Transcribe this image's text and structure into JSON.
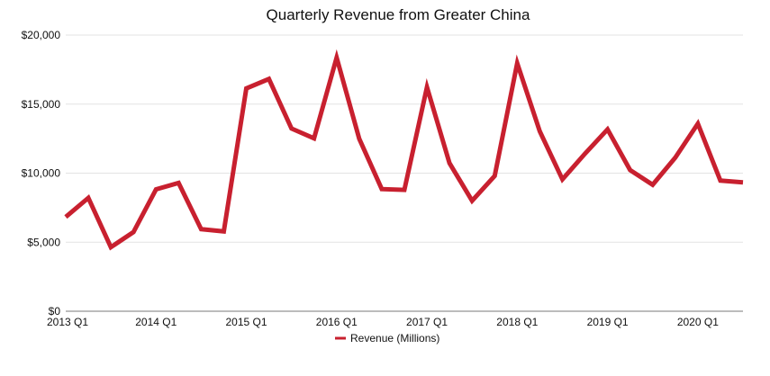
{
  "chart_data": {
    "type": "line",
    "title": "Quarterly Revenue from Greater China",
    "xlabel": "",
    "ylabel": "",
    "x_tick_labels": [
      "2013 Q1",
      "2014 Q1",
      "2015 Q1",
      "2016 Q1",
      "2017 Q1",
      "2018 Q1",
      "2019 Q1",
      "2020 Q1"
    ],
    "y_tick_labels": [
      "$0",
      "$5,000",
      "$10,000",
      "$15,000",
      "$20,000"
    ],
    "y_ticks": [
      0,
      5000,
      10000,
      15000,
      20000
    ],
    "ylim": [
      0,
      20000
    ],
    "grid": true,
    "legend_position": "bottom",
    "color": "#c8202f",
    "x": [
      "2013 Q1",
      "2013 Q2",
      "2013 Q3",
      "2013 Q4",
      "2014 Q1",
      "2014 Q2",
      "2014 Q3",
      "2014 Q4",
      "2015 Q1",
      "2015 Q2",
      "2015 Q3",
      "2015 Q4",
      "2016 Q1",
      "2016 Q2",
      "2016 Q3",
      "2016 Q4",
      "2017 Q1",
      "2017 Q2",
      "2017 Q3",
      "2017 Q4",
      "2018 Q1",
      "2018 Q2",
      "2018 Q3",
      "2018 Q4",
      "2019 Q1",
      "2019 Q2",
      "2019 Q3",
      "2019 Q4",
      "2020 Q1",
      "2020 Q2",
      "2020 Q3"
    ],
    "series": [
      {
        "name": "Revenue (Millions)",
        "values": [
          6830,
          8210,
          4640,
          5730,
          8830,
          9290,
          5940,
          5780,
          16140,
          16820,
          13230,
          12520,
          18370,
          12490,
          8850,
          8790,
          16230,
          10730,
          8000,
          9800,
          17960,
          13020,
          9550,
          11410,
          13170,
          10220,
          9160,
          11130,
          13580,
          9460,
          9330
        ]
      }
    ]
  }
}
